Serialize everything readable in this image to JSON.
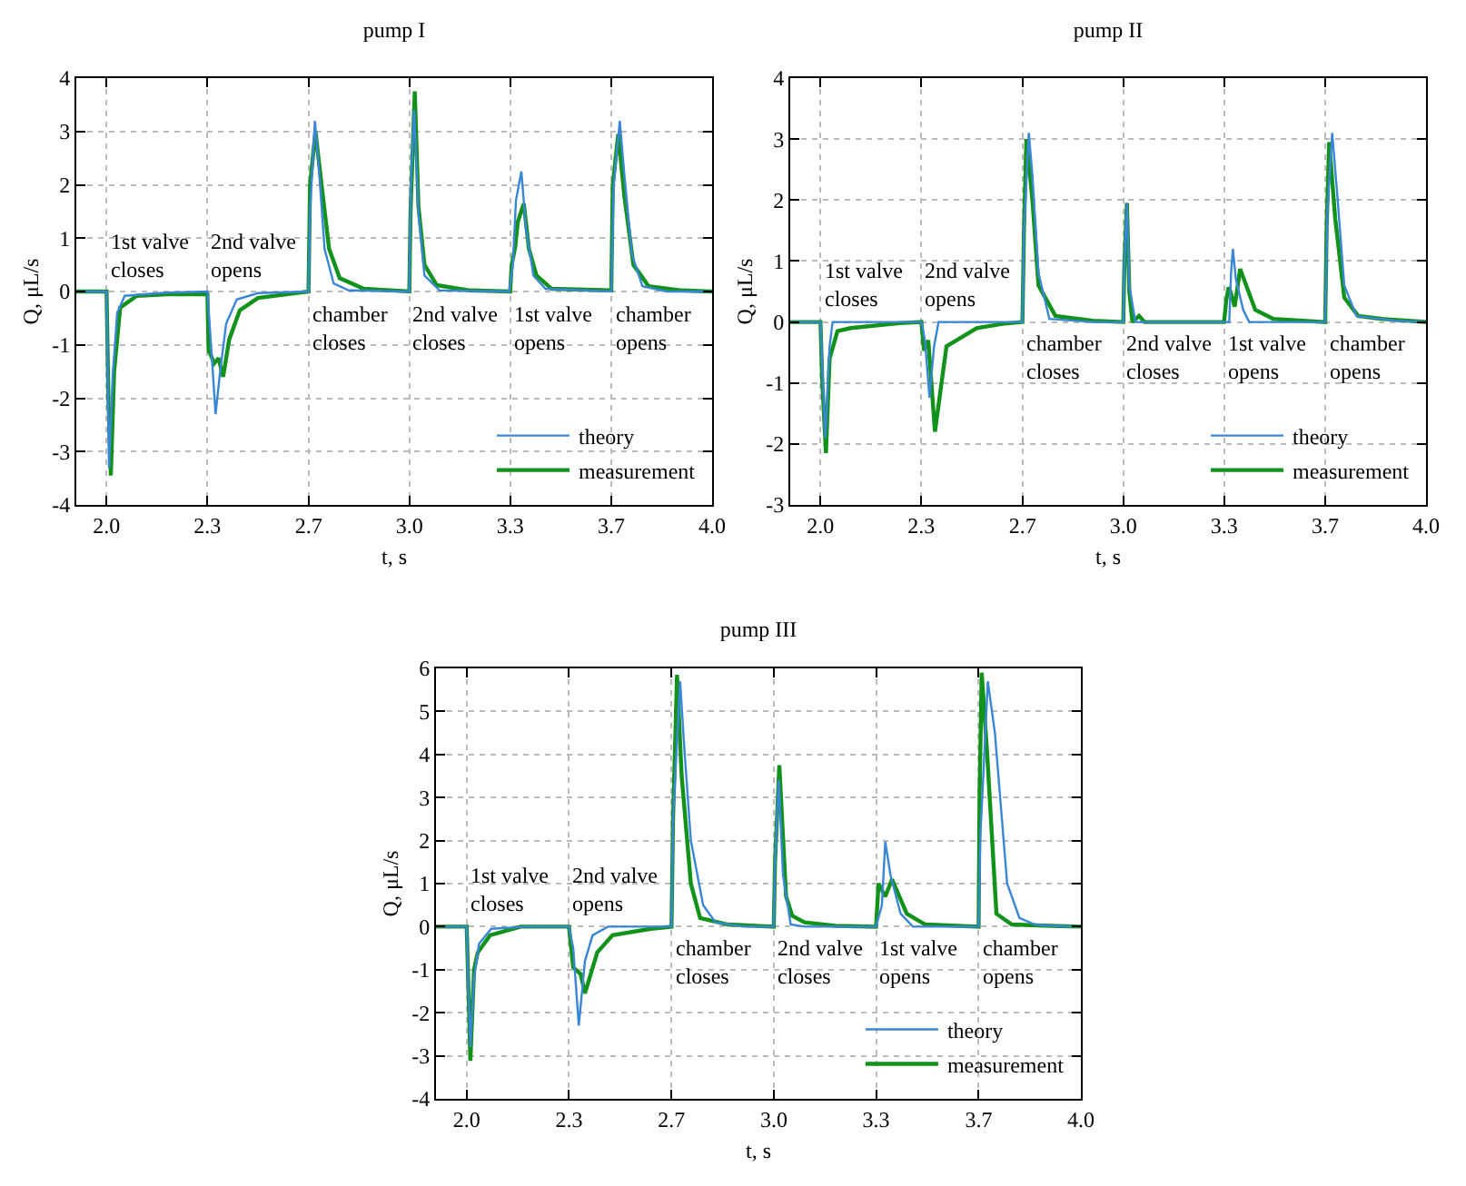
{
  "chart_data": [
    {
      "type": "line",
      "title": "pump I",
      "xlabel": "t, s",
      "ylabel": "Q, μL/s",
      "xlim": [
        1.9,
        4.0
      ],
      "ylim": [
        -4,
        4
      ],
      "xticks": [
        {
          "value": 2,
          "label": "2.0"
        },
        {
          "value": 2.333,
          "label": "2.3"
        },
        {
          "value": 2.667,
          "label": "2.7"
        },
        {
          "value": 3,
          "label": "3.0"
        },
        {
          "value": 3.333,
          "label": "3.3"
        },
        {
          "value": 3.667,
          "label": "3.7"
        },
        {
          "value": 4,
          "label": "4.0"
        }
      ],
      "yticks": [
        -4,
        -3,
        -2,
        -1,
        0,
        1,
        2,
        3,
        4
      ],
      "grid": true,
      "legend": "bottom right",
      "marker": "none",
      "line_style": "solid",
      "series": [
        {
          "name": "theory",
          "color": "#3a86d6",
          "x": [
            1.9,
            2.0,
            2.008,
            2.02,
            2.035,
            2.06,
            2.2,
            2.333,
            2.345,
            2.36,
            2.375,
            2.395,
            2.43,
            2.5,
            2.667,
            2.672,
            2.688,
            2.7,
            2.72,
            2.75,
            2.8,
            3.0,
            3.005,
            3.016,
            3.03,
            3.05,
            3.1,
            3.33,
            3.342,
            3.352,
            3.37,
            3.385,
            3.41,
            3.45,
            3.667,
            3.675,
            3.695,
            3.71,
            3.735,
            3.77,
            3.85,
            4.0
          ],
          "values": [
            0,
            0,
            -3.3,
            -1.6,
            -0.4,
            -0.08,
            -0.02,
            0,
            -1.0,
            -2.3,
            -1.5,
            -0.6,
            -0.15,
            -0.03,
            0,
            1.5,
            3.2,
            2.4,
            0.8,
            0.15,
            0.02,
            0,
            2.0,
            3.4,
            1.5,
            0.3,
            0.02,
            0,
            0.5,
            1.7,
            2.25,
            1.2,
            0.3,
            0.05,
            0,
            2.0,
            3.2,
            2.2,
            0.7,
            0.1,
            0,
            0
          ]
        },
        {
          "name": "measurement",
          "color": "#12921a",
          "x": [
            1.9,
            2.0,
            2.006,
            2.014,
            2.025,
            2.045,
            2.1,
            2.2,
            2.333,
            2.337,
            2.345,
            2.355,
            2.37,
            2.385,
            2.405,
            2.44,
            2.5,
            2.6,
            2.667,
            2.672,
            2.69,
            2.71,
            2.735,
            2.77,
            2.85,
            3.0,
            3.004,
            3.018,
            3.03,
            3.05,
            3.09,
            3.2,
            3.333,
            3.338,
            3.35,
            3.358,
            3.378,
            3.395,
            3.42,
            3.47,
            3.667,
            3.672,
            3.69,
            3.71,
            3.74,
            3.79,
            3.9,
            4.0
          ],
          "values": [
            0,
            0,
            -2.0,
            -3.45,
            -1.5,
            -0.3,
            -0.08,
            -0.05,
            -0.05,
            -1.1,
            -1.2,
            -1.35,
            -1.25,
            -1.6,
            -0.9,
            -0.35,
            -0.12,
            -0.05,
            0,
            2.0,
            3.0,
            2.0,
            0.8,
            0.25,
            0.05,
            0,
            1.5,
            3.75,
            1.6,
            0.5,
            0.12,
            0.02,
            0,
            0.5,
            0.85,
            1.3,
            1.65,
            0.8,
            0.3,
            0.05,
            0.02,
            2.0,
            2.95,
            1.8,
            0.5,
            0.1,
            0.02,
            0
          ]
        }
      ],
      "annotations": [
        "1st valve\ncloses",
        "2nd valve\nopens",
        "chamber\ncloses",
        "2nd valve\ncloses",
        "1st valve\nopens",
        "chamber\nopens"
      ]
    },
    {
      "type": "line",
      "title": "pump II",
      "xlabel": "t, s",
      "ylabel": "Q, μL/s",
      "xlim": [
        1.9,
        4.0
      ],
      "ylim": [
        -3,
        4
      ],
      "xticks": [
        {
          "value": 2,
          "label": "2.0"
        },
        {
          "value": 2.333,
          "label": "2.3"
        },
        {
          "value": 2.667,
          "label": "2.7"
        },
        {
          "value": 3,
          "label": "3.0"
        },
        {
          "value": 3.333,
          "label": "3.3"
        },
        {
          "value": 3.667,
          "label": "3.7"
        },
        {
          "value": 4,
          "label": "4.0"
        }
      ],
      "yticks": [
        -3,
        -2,
        -1,
        0,
        1,
        2,
        3,
        4
      ],
      "grid": true,
      "legend": "bottom right",
      "marker": "none",
      "line_style": "solid",
      "series": [
        {
          "name": "theory",
          "color": "#3a86d6",
          "x": [
            1.9,
            2.0,
            2.008,
            2.016,
            2.03,
            2.04,
            2.2,
            2.333,
            2.345,
            2.36,
            2.375,
            2.39,
            2.5,
            2.667,
            2.672,
            2.688,
            2.7,
            2.72,
            2.756,
            2.9,
            3.0,
            3.004,
            3.012,
            3.02,
            3.04,
            3.2,
            3.35,
            3.356,
            3.362,
            3.372,
            3.396,
            3.416,
            3.667,
            3.674,
            3.69,
            3.705,
            3.73,
            3.77,
            3.9,
            4.0
          ],
          "values": [
            0,
            0,
            -1.0,
            -1.9,
            -0.4,
            0,
            0,
            0,
            -0.3,
            -1.24,
            -0.4,
            0,
            0,
            0,
            1.5,
            3.1,
            2.4,
            0.8,
            0.05,
            0,
            0,
            1.0,
            1.95,
            0.6,
            0,
            0,
            0,
            0.8,
            1.2,
            0.7,
            0.2,
            0,
            0,
            1.8,
            3.1,
            2.2,
            0.6,
            0.1,
            0.02,
            0
          ]
        },
        {
          "name": "measurement",
          "color": "#12921a",
          "x": [
            1.9,
            2.0,
            2.006,
            2.018,
            2.03,
            2.056,
            2.1,
            2.26,
            2.333,
            2.342,
            2.356,
            2.378,
            2.416,
            2.516,
            2.6,
            2.667,
            2.672,
            2.68,
            2.7,
            2.72,
            2.776,
            2.9,
            3.0,
            3.004,
            3.012,
            3.02,
            3.03,
            3.052,
            3.07,
            3.2,
            3.333,
            3.34,
            3.348,
            3.354,
            3.368,
            3.386,
            3.436,
            3.496,
            3.667,
            3.672,
            3.68,
            3.7,
            3.73,
            3.776,
            3.856,
            4.0
          ],
          "values": [
            0,
            0,
            -1.0,
            -2.15,
            -0.6,
            -0.15,
            -0.1,
            -0.02,
            0,
            -0.47,
            -0.3,
            -1.8,
            -0.4,
            -0.1,
            -0.03,
            0,
            1.5,
            3.0,
            2.0,
            0.6,
            0.1,
            0.02,
            0,
            1.0,
            1.95,
            0.5,
            0,
            0.1,
            0,
            0,
            0,
            0.35,
            0.57,
            0.5,
            0.25,
            0.87,
            0.2,
            0.05,
            0,
            1.6,
            2.95,
            1.7,
            0.4,
            0.1,
            0.05,
            0
          ]
        }
      ],
      "annotations": [
        "1st valve\ncloses",
        "2nd valve\nopens",
        "chamber\ncloses",
        "2nd valve\ncloses",
        "1st valve\nopens",
        "chamber\nopens"
      ]
    },
    {
      "type": "line",
      "title": "pump III",
      "xlabel": "t, s",
      "ylabel": "Q, μL/s",
      "xlim": [
        1.9,
        4.0
      ],
      "ylim": [
        -4,
        6
      ],
      "xticks": [
        {
          "value": 2,
          "label": "2.0"
        },
        {
          "value": 2.333,
          "label": "2.3"
        },
        {
          "value": 2.667,
          "label": "2.7"
        },
        {
          "value": 3,
          "label": "3.0"
        },
        {
          "value": 3.333,
          "label": "3.3"
        },
        {
          "value": 3.667,
          "label": "3.7"
        },
        {
          "value": 4,
          "label": "4.0"
        }
      ],
      "yticks": [
        -4,
        -3,
        -2,
        -1,
        0,
        1,
        2,
        3,
        4,
        5,
        6
      ],
      "grid": true,
      "legend": "bottom right",
      "marker": "none",
      "line_style": "solid",
      "series": [
        {
          "name": "theory",
          "color": "#3a86d6",
          "x": [
            1.9,
            2.0,
            2.006,
            2.012,
            2.024,
            2.04,
            2.08,
            2.2,
            2.333,
            2.347,
            2.365,
            2.385,
            2.41,
            2.46,
            2.6,
            2.667,
            2.672,
            2.695,
            2.71,
            2.73,
            2.77,
            2.81,
            2.9,
            3.0,
            3.004,
            3.016,
            3.03,
            3.055,
            3.1,
            3.333,
            3.352,
            3.363,
            3.38,
            3.413,
            3.453,
            3.667,
            3.672,
            3.697,
            3.72,
            3.76,
            3.8,
            3.85,
            3.9,
            4.0
          ],
          "values": [
            0,
            0,
            -1.5,
            -2.8,
            -1.2,
            -0.4,
            -0.05,
            0,
            0,
            -0.5,
            -2.3,
            -0.8,
            -0.2,
            0,
            0,
            0,
            2.5,
            5.7,
            4.0,
            2.0,
            0.5,
            0.1,
            0,
            0,
            1.5,
            3.4,
            1.2,
            0.05,
            0,
            0,
            0.5,
            1.97,
            1.2,
            0.3,
            0,
            0,
            2.0,
            5.7,
            4.5,
            1.0,
            0.2,
            0.05,
            0.02,
            0
          ]
        },
        {
          "name": "measurement",
          "color": "#12921a",
          "x": [
            1.9,
            2.0,
            2.006,
            2.012,
            2.024,
            2.036,
            2.076,
            2.176,
            2.333,
            2.347,
            2.371,
            2.385,
            2.425,
            2.475,
            2.6,
            2.667,
            2.672,
            2.685,
            2.7,
            2.73,
            2.76,
            2.85,
            3.0,
            3.004,
            3.018,
            3.04,
            3.06,
            3.1,
            3.2,
            3.333,
            3.341,
            3.363,
            3.385,
            3.433,
            3.493,
            3.667,
            3.67,
            3.677,
            3.695,
            3.725,
            3.775,
            3.9,
            4.0
          ],
          "values": [
            0,
            0,
            -1.5,
            -3.12,
            -1.0,
            -0.6,
            -0.2,
            0,
            0,
            -0.95,
            -1.1,
            -1.55,
            -0.6,
            -0.2,
            -0.05,
            0,
            2.5,
            5.85,
            3.5,
            1.0,
            0.2,
            0.05,
            0,
            1.5,
            3.75,
            0.7,
            0.25,
            0.1,
            0.02,
            0,
            1.0,
            0.7,
            1.1,
            0.3,
            0.05,
            0,
            3.0,
            5.9,
            4.0,
            0.3,
            0.05,
            0.02,
            0
          ]
        }
      ],
      "annotations": [
        "1st valve\ncloses",
        "2nd valve\nopens",
        "chamber\ncloses",
        "2nd valve\ncloses",
        "1st valve\nopens",
        "chamber\nopens"
      ]
    }
  ]
}
